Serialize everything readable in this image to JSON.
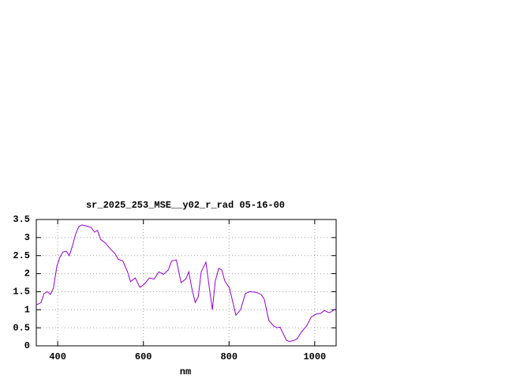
{
  "chart_data": {
    "type": "line",
    "title": "sr_2025_253_MSE__y02_r_rad 05-16-00",
    "x_label": "nm",
    "x": [
      350,
      361,
      368,
      376,
      383,
      390,
      398,
      405,
      412,
      420,
      427,
      434,
      442,
      449,
      456,
      467,
      478,
      486,
      493,
      500,
      511,
      522,
      534,
      541,
      552,
      563,
      570,
      581,
      592,
      603,
      614,
      625,
      636,
      647,
      658,
      666,
      677,
      688,
      699,
      706,
      713,
      721,
      728,
      735,
      746,
      754,
      761,
      768,
      776,
      783,
      790,
      801,
      809,
      816,
      827,
      838,
      849,
      864,
      875,
      882,
      893,
      904,
      912,
      919,
      934,
      941,
      952,
      959,
      970,
      981,
      992,
      1003,
      1014,
      1022,
      1033,
      1040,
      1047
    ],
    "series": [
      {
        "name": "sr_2025_253_MSE__y02_r_rad",
        "color": "#9400d3",
        "values": [
          1.13,
          1.2,
          1.45,
          1.5,
          1.42,
          1.6,
          2.2,
          2.45,
          2.6,
          2.62,
          2.5,
          2.75,
          3.1,
          3.3,
          3.35,
          3.32,
          3.28,
          3.15,
          3.2,
          2.95,
          2.85,
          2.7,
          2.55,
          2.4,
          2.35,
          2.05,
          1.78,
          1.88,
          1.62,
          1.72,
          1.88,
          1.85,
          2.05,
          1.98,
          2.1,
          2.35,
          2.38,
          1.75,
          1.85,
          2.05,
          1.6,
          1.2,
          1.35,
          2.05,
          2.32,
          1.6,
          1.0,
          1.8,
          2.15,
          2.1,
          1.8,
          1.6,
          1.2,
          0.85,
          1.0,
          1.45,
          1.5,
          1.48,
          1.42,
          1.3,
          0.7,
          0.55,
          0.5,
          0.52,
          0.15,
          0.12,
          0.15,
          0.2,
          0.4,
          0.55,
          0.8,
          0.88,
          0.9,
          0.98,
          0.92,
          0.95,
          1.02
        ]
      }
    ],
    "xlim": [
      350,
      1050
    ],
    "xticks": [
      400,
      600,
      800,
      1000
    ],
    "ylim": [
      0,
      3.5
    ],
    "yticks": [
      0,
      0.5,
      1,
      1.5,
      2,
      2.5,
      3,
      3.5
    ],
    "grid": true
  }
}
